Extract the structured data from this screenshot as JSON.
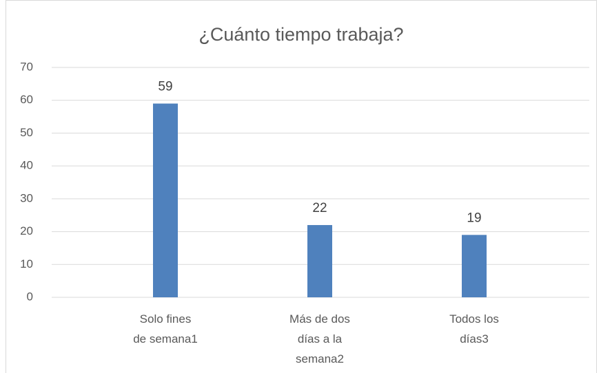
{
  "chart_data": {
    "type": "bar",
    "title": "¿Cuánto tiempo trabaja?",
    "categories": [
      "Solo fines de semana1",
      "Más de dos días a la semana2",
      "Todos los días3"
    ],
    "values": [
      59,
      22,
      19
    ],
    "color": "#4f81bd",
    "ylim": [
      0,
      70
    ],
    "yticks": [
      0,
      10,
      20,
      30,
      40,
      50,
      60,
      70
    ],
    "grid": true
  }
}
